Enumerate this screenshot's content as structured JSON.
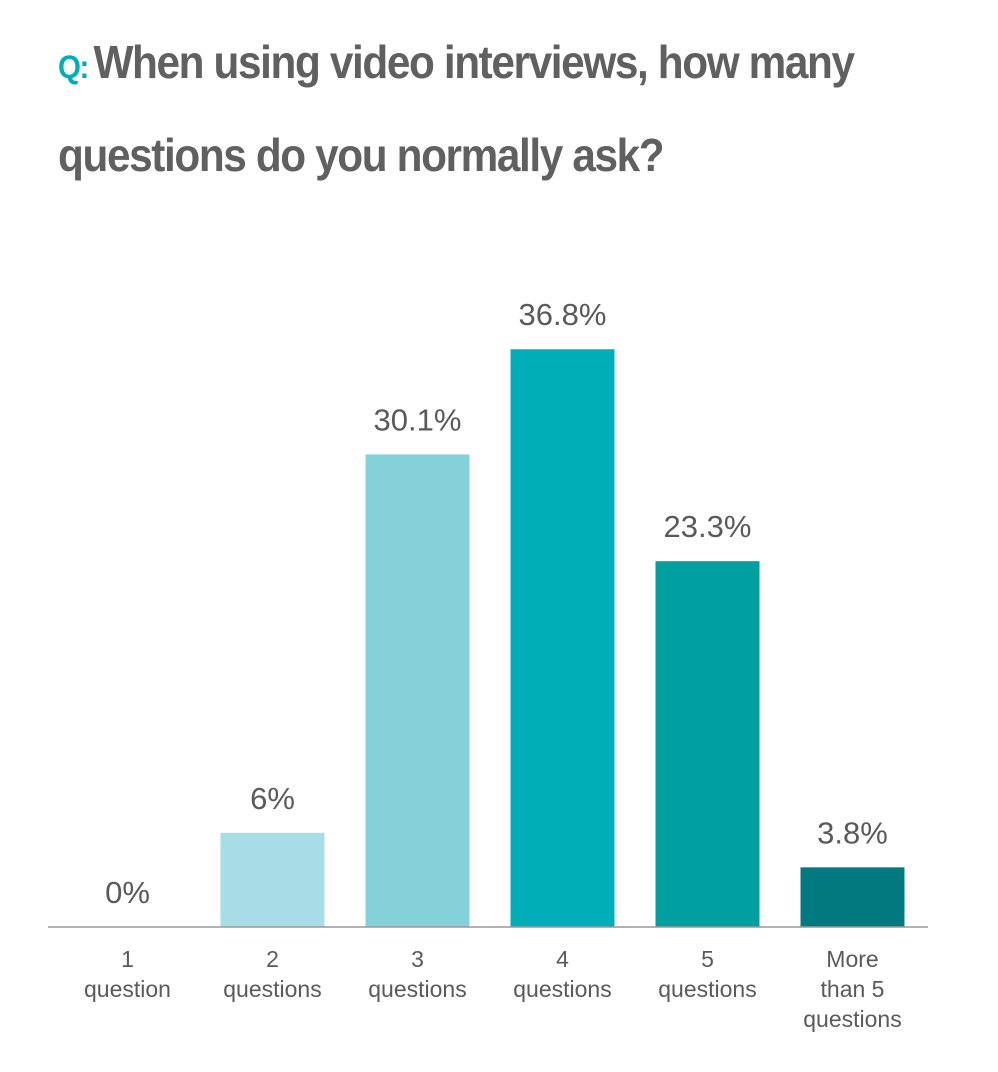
{
  "chart_data": {
    "type": "bar",
    "title_prefix": "Q:",
    "title": "When using video interviews, how many questions do you normally ask?",
    "categories": [
      [
        "1",
        "question"
      ],
      [
        "2",
        "questions"
      ],
      [
        "3",
        "questions"
      ],
      [
        "4",
        "questions"
      ],
      [
        "5",
        "questions"
      ],
      [
        "More",
        "than 5",
        "questions"
      ]
    ],
    "values": [
      0,
      6,
      30.1,
      36.8,
      23.3,
      3.8
    ],
    "value_labels": [
      "0%",
      "6%",
      "30.1%",
      "36.8%",
      "23.3%",
      "3.8%"
    ],
    "colors": [
      "#c0e8ee",
      "#a6dde6",
      "#85d1d9",
      "#00aeb9",
      "#00a0a0",
      "#007a80"
    ],
    "ylim": [
      0,
      40
    ]
  }
}
